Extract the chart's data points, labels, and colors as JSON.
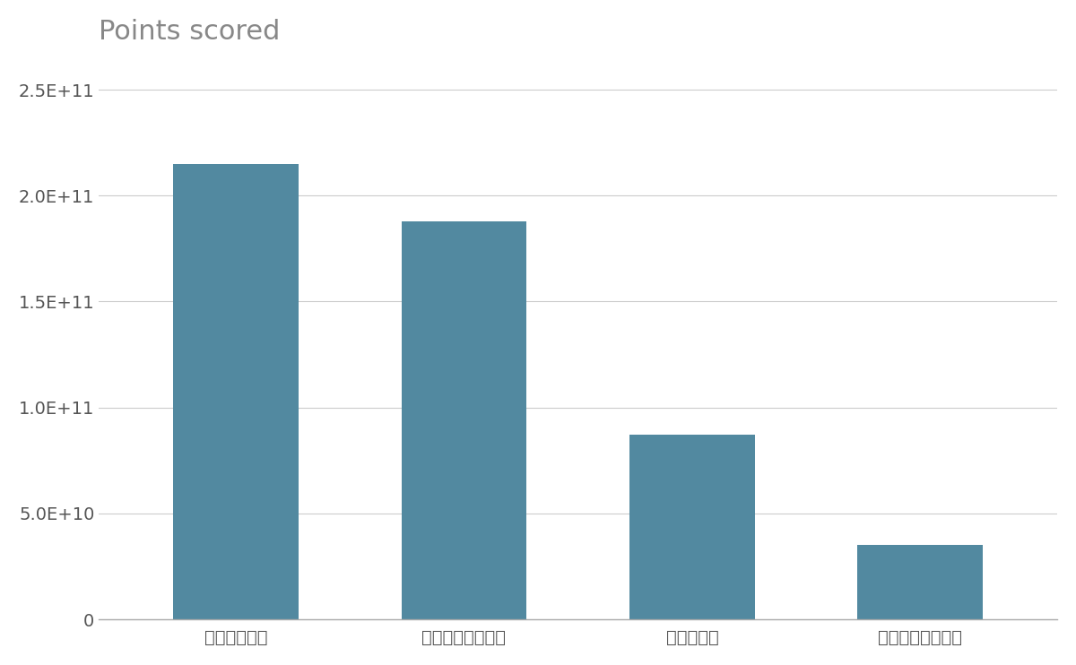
{
  "title": "Points scored",
  "categories": [
    "日本オラクル",
    "トレンドマイクロ",
    "オービック",
    "東苝情報システム"
  ],
  "values": [
    215000000000.0,
    188000000000.0,
    87000000000.0,
    35000000000.0
  ],
  "bar_color": "#5289a0",
  "title_fontsize": 22,
  "tick_fontsize": 14,
  "label_fontsize": 14,
  "ylim": [
    0,
    265000000000.0
  ],
  "yticks": [
    0,
    50000000000.0,
    100000000000.0,
    150000000000.0,
    200000000000.0,
    250000000000.0
  ],
  "ytick_labels": [
    "0",
    "5.0E+10",
    "1.0E+11",
    "1.5E+11",
    "2.0E+11",
    "2.5E+11"
  ],
  "background_color": "#ffffff",
  "grid_color": "#cccccc",
  "title_color": "#888888",
  "tick_color": "#555555",
  "bar_width": 0.55
}
